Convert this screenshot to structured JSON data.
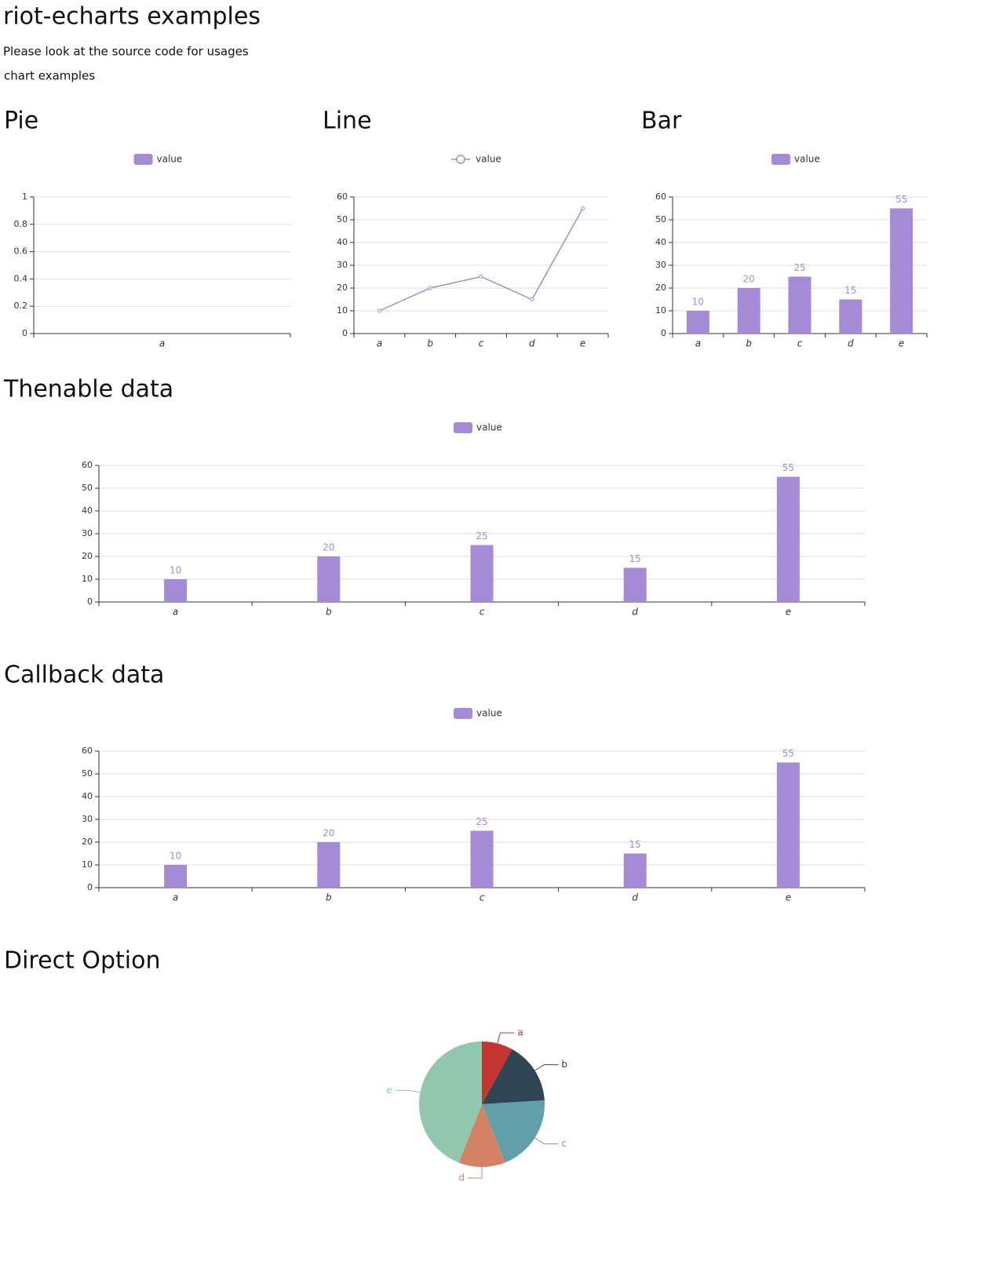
{
  "header": {
    "title": "riot-echarts examples",
    "subtitle": "Please look at the source code for usages",
    "caption": "chart examples"
  },
  "chart_data": [
    {
      "type": "bar",
      "title": "Pie",
      "categories": [
        "a"
      ],
      "series": [
        {
          "name": "value",
          "color": "#a58ad8",
          "values": [
            null
          ]
        }
      ],
      "ylim": [
        0,
        1
      ],
      "yticks": [
        0,
        0.2,
        0.4,
        0.6,
        0.8,
        1
      ],
      "grid": true
    },
    {
      "type": "line",
      "title": "Line",
      "categories": [
        "a",
        "b",
        "c",
        "d",
        "e"
      ],
      "series": [
        {
          "name": "value",
          "color": "#a58ad8",
          "values": [
            10,
            20,
            25,
            15,
            55
          ]
        }
      ],
      "ylim": [
        0,
        60
      ],
      "yticks": [
        0,
        10,
        20,
        30,
        40,
        50,
        60
      ],
      "grid": true
    },
    {
      "type": "bar",
      "title": "Bar",
      "categories": [
        "a",
        "b",
        "c",
        "d",
        "e"
      ],
      "series": [
        {
          "name": "value",
          "color": "#a58ad8",
          "values": [
            10,
            20,
            25,
            15,
            55
          ]
        }
      ],
      "ylim": [
        0,
        60
      ],
      "yticks": [
        0,
        10,
        20,
        30,
        40,
        50,
        60
      ],
      "grid": true,
      "data_labels": true
    },
    {
      "type": "bar",
      "title": "Thenable data",
      "categories": [
        "a",
        "b",
        "c",
        "d",
        "e"
      ],
      "series": [
        {
          "name": "value",
          "color": "#a58ad8",
          "values": [
            10,
            20,
            25,
            15,
            55
          ]
        }
      ],
      "ylim": [
        0,
        60
      ],
      "yticks": [
        0,
        10,
        20,
        30,
        40,
        50,
        60
      ],
      "grid": true,
      "data_labels": true
    },
    {
      "type": "bar",
      "title": "Callback data",
      "categories": [
        "a",
        "b",
        "c",
        "d",
        "e"
      ],
      "series": [
        {
          "name": "value",
          "color": "#a58ad8",
          "values": [
            10,
            20,
            25,
            15,
            55
          ]
        }
      ],
      "ylim": [
        0,
        60
      ],
      "yticks": [
        0,
        10,
        20,
        30,
        40,
        50,
        60
      ],
      "grid": true,
      "data_labels": true
    },
    {
      "type": "pie",
      "title": "Direct Option",
      "categories": [
        "a",
        "b",
        "c",
        "d",
        "e"
      ],
      "values": [
        10,
        20,
        25,
        15,
        55
      ],
      "colors": [
        "#c23531",
        "#2f4554",
        "#61a0a8",
        "#d48265",
        "#91c7ae"
      ]
    }
  ]
}
